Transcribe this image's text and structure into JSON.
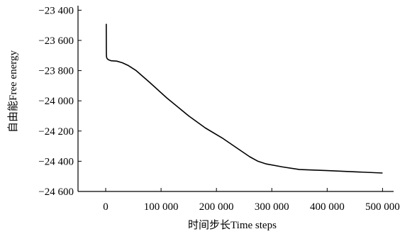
{
  "chart_data": {
    "type": "line",
    "title": "",
    "xlabel": "时间步长Time steps",
    "ylabel": "自由能Free energy",
    "xlim": [
      -50000,
      520000
    ],
    "ylim": [
      -24600,
      -23370
    ],
    "grid": false,
    "legend": "none",
    "x_ticks": [
      {
        "value": 0,
        "label": "0"
      },
      {
        "value": 100000,
        "label": "100 000"
      },
      {
        "value": 200000,
        "label": "200 000"
      },
      {
        "value": 300000,
        "label": "300 000"
      },
      {
        "value": 400000,
        "label": "400 000"
      },
      {
        "value": 500000,
        "label": "500 000"
      }
    ],
    "y_ticks": [
      {
        "value": -23400,
        "label": "−23 400"
      },
      {
        "value": -23600,
        "label": "−23 600"
      },
      {
        "value": -23800,
        "label": "−23 800"
      },
      {
        "value": -24000,
        "label": "−24 000"
      },
      {
        "value": -24200,
        "label": "−24 200"
      },
      {
        "value": -24400,
        "label": "−24 400"
      },
      {
        "value": -24600,
        "label": "−24 600"
      }
    ],
    "series": [
      {
        "color": "#000000",
        "x": [
          1000,
          1200,
          1500,
          2500,
          5000,
          10000,
          20000,
          30000,
          40000,
          55000,
          80000,
          110000,
          150000,
          180000,
          210000,
          240000,
          260000,
          275000,
          290000,
          320000,
          350000,
          400000,
          450000,
          500000
        ],
        "y": [
          -23490,
          -23690,
          -23710,
          -23720,
          -23728,
          -23735,
          -23737,
          -23748,
          -23765,
          -23800,
          -23880,
          -23980,
          -24100,
          -24180,
          -24245,
          -24320,
          -24370,
          -24400,
          -24418,
          -24438,
          -24455,
          -24462,
          -24470,
          -24478
        ]
      }
    ]
  }
}
